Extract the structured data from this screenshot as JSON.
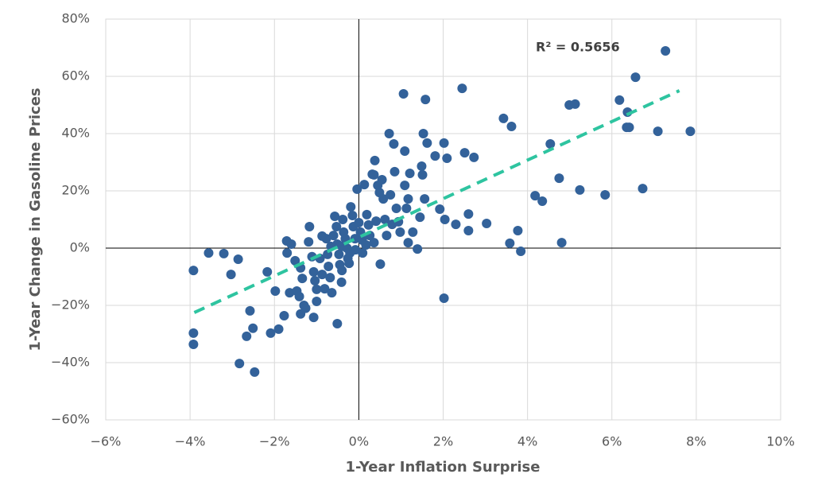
{
  "chart_data": {
    "type": "scatter",
    "xlabel": "1-Year Inflation Surprise",
    "ylabel": "1-Year Change in Gasoline Prices",
    "annotation": "R² = 0.5656",
    "color": "#33629a",
    "grid": true,
    "xlim": [
      -6,
      10
    ],
    "ylim": [
      -60,
      80
    ],
    "xticks": [
      {
        "value": -6,
        "label": "−6%"
      },
      {
        "value": -4,
        "label": "−4%"
      },
      {
        "value": -2,
        "label": "−2%"
      },
      {
        "value": 0,
        "label": "0%"
      },
      {
        "value": 2,
        "label": "2%"
      },
      {
        "value": 4,
        "label": "4%"
      },
      {
        "value": 6,
        "label": "6%"
      },
      {
        "value": 8,
        "label": "8%"
      },
      {
        "value": 10,
        "label": "10%"
      }
    ],
    "yticks": [
      {
        "value": -60,
        "label": "−60%"
      },
      {
        "value": -40,
        "label": "−40%"
      },
      {
        "value": -20,
        "label": "−20%"
      },
      {
        "value": 0,
        "label": "0%"
      },
      {
        "value": 20,
        "label": "20%"
      },
      {
        "value": 40,
        "label": "40%"
      },
      {
        "value": 60,
        "label": "60%"
      },
      {
        "value": 80,
        "label": "80%"
      }
    ],
    "x": [
      -3.92,
      -3.56,
      -3.2,
      -2.86,
      -3.03,
      -3.92,
      -3.92,
      -2.83,
      -2.47,
      -2.51,
      -2.58,
      -2.66,
      -2.17,
      -2.09,
      -1.9,
      -1.77,
      -1.98,
      -1.71,
      -1.7,
      -1.6,
      -1.51,
      -1.64,
      -1.47,
      -1.41,
      -1.38,
      -1.34,
      -1.3,
      -1.38,
      -1.26,
      -1.17,
      -1.19,
      -1.11,
      -1.07,
      -1.04,
      -1,
      -1.07,
      -1,
      -0.92,
      -0.87,
      -0.81,
      -0.77,
      -0.74,
      -0.72,
      -0.68,
      -0.64,
      -0.6,
      -0.57,
      -0.53,
      -0.51,
      -0.47,
      -0.45,
      -0.41,
      -0.51,
      -0.38,
      -0.36,
      -0.32,
      -0.28,
      -0.26,
      -0.23,
      -0.19,
      -0.15,
      -0.13,
      -0.09,
      -0.08,
      -0.04,
      0,
      0.04,
      0.08,
      0.09,
      0.13,
      0.19,
      0.23,
      0.26,
      0.32,
      0.38,
      0.41,
      0.45,
      0.49,
      0.51,
      0.55,
      0.58,
      0.62,
      0.66,
      0.72,
      0.75,
      0.79,
      0.83,
      0.85,
      0.89,
      0.94,
      0.98,
      1.06,
      1.09,
      1.09,
      1.13,
      1.17,
      1.21,
      1.17,
      1.28,
      1.39,
      1.45,
      1.49,
      1.51,
      1.53,
      1.56,
      1.58,
      1.62,
      1.81,
      1.92,
      2.02,
      2.09,
      2.02,
      2.04,
      2.3,
      2.45,
      2.51,
      2.6,
      2.6,
      2.73,
      3.03,
      3.43,
      3.62,
      3.58,
      3.77,
      3.84,
      4.18,
      4.35,
      4.54,
      4.75,
      4.81,
      4.99,
      5.13,
      5.24,
      5.84,
      6.18,
      6.37,
      6.35,
      6.41,
      6.56,
      6.73,
      7.09,
      7.27,
      7.86,
      -0.87,
      -0.4,
      -0.21,
      0.17,
      0.36,
      0.36,
      -0.4,
      -0.66
    ],
    "values": [
      -7.8,
      -1.7,
      -1.9,
      -3.9,
      -9.2,
      -29.7,
      -33.6,
      -40.3,
      -43.3,
      -28,
      -21.9,
      -30.8,
      -8.3,
      -29.7,
      -28.3,
      -23.6,
      -15,
      2.5,
      -1.7,
      1.4,
      -4.4,
      -15.6,
      -15,
      -16.9,
      -6.9,
      -10.6,
      -20,
      -23,
      -21,
      7.5,
      2.2,
      -3,
      -8.3,
      -11.4,
      -14.4,
      -24.2,
      -18.6,
      -3.6,
      -9.2,
      -14.2,
      3.3,
      -2.2,
      -6.4,
      -10.3,
      -15.6,
      4.4,
      11.1,
      7.5,
      1.4,
      -2.2,
      -5.8,
      -11.9,
      -26.4,
      10,
      5.6,
      3.3,
      0,
      -3.6,
      -5.3,
      14.4,
      11.4,
      7.5,
      3.3,
      -0.6,
      20.6,
      8.9,
      5.6,
      2.8,
      -1.7,
      22.2,
      11.7,
      8.1,
      4.4,
      25.8,
      30.6,
      9.4,
      21.9,
      19.4,
      -5.6,
      23.9,
      17.2,
      10,
      4.4,
      40,
      18.6,
      8.3,
      36.4,
      26.7,
      13.9,
      9.2,
      5.6,
      53.9,
      33.9,
      21.9,
      13.9,
      17.2,
      26.1,
      1.9,
      5.6,
      -0.3,
      10.8,
      28.6,
      25.6,
      40,
      17.2,
      51.9,
      36.7,
      32.2,
      13.6,
      36.7,
      31.4,
      -17.5,
      10,
      8.3,
      55.8,
      33.3,
      11.9,
      6.1,
      31.7,
      8.6,
      45.3,
      42.5,
      1.7,
      6.1,
      -1.1,
      18.3,
      16.4,
      36.4,
      24.4,
      1.9,
      50,
      50.3,
      20.3,
      18.6,
      51.7,
      47.5,
      42.2,
      42.2,
      59.7,
      20.8,
      40.8,
      68.9,
      40.8,
      4.2,
      0.6,
      -1.7,
      1.1,
      1.9,
      25.6,
      -7.8,
      0.6
    ],
    "trendline": {
      "x": [
        -3.9,
        7.6
      ],
      "values": [
        -22.5,
        55
      ],
      "color": "#2ec4a0"
    }
  }
}
